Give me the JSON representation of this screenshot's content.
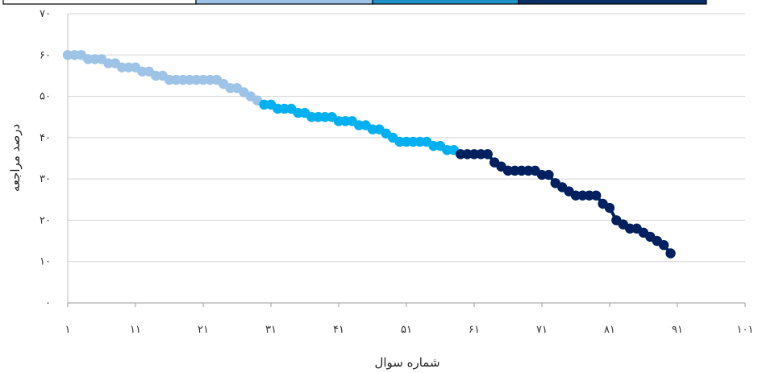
{
  "chart_data": {
    "type": "scatter",
    "title": "",
    "xlabel": "شماره سوال",
    "ylabel": "درصد مراجعه",
    "xlim": [
      1,
      101
    ],
    "ylim": [
      0,
      70
    ],
    "x_ticks": [
      1,
      11,
      21,
      31,
      41,
      51,
      61,
      71,
      81,
      91,
      101
    ],
    "x_tick_labels": [
      "۱",
      "۱۱",
      "۲۱",
      "۳۱",
      "۴۱",
      "۵۱",
      "۶۱",
      "۷۱",
      "۸۱",
      "۹۱",
      "۱۰۱"
    ],
    "y_ticks": [
      0,
      10,
      20,
      30,
      40,
      50,
      60,
      70
    ],
    "y_tick_labels": [
      "۰",
      "۱۰",
      "۲۰",
      "۳۰",
      "۴۰",
      "۵۰",
      "۶۰",
      "۷۰"
    ],
    "grid": true,
    "legend_colors": [
      "#ffffff",
      "#9dc3e6",
      "#1e8fc7",
      "#0a2f66"
    ],
    "series": [
      {
        "color": "#9dc3e6",
        "x": [
          1,
          2,
          3,
          4,
          5,
          6,
          7,
          8,
          9,
          10,
          11,
          12,
          13,
          14,
          15,
          16,
          17,
          18,
          19,
          20,
          21,
          22,
          23,
          24,
          25,
          26,
          27,
          28,
          29
        ],
        "y": [
          60,
          60,
          60,
          59,
          59,
          59,
          58,
          58,
          57,
          57,
          57,
          56,
          56,
          55,
          55,
          54,
          54,
          54,
          54,
          54,
          54,
          54,
          54,
          53,
          52,
          52,
          51,
          50,
          49
        ]
      },
      {
        "color": "#00b0f0",
        "x": [
          30,
          31,
          32,
          33,
          34,
          35,
          36,
          37,
          38,
          39,
          40,
          41,
          42,
          43,
          44,
          45,
          46,
          47,
          48,
          49,
          50,
          51,
          52,
          53,
          54,
          55,
          56,
          57,
          58
        ],
        "y": [
          48,
          48,
          47,
          47,
          47,
          46,
          46,
          45,
          45,
          45,
          45,
          44,
          44,
          44,
          43,
          43,
          42,
          42,
          41,
          40,
          39,
          39,
          39,
          39,
          39,
          38,
          38,
          37,
          37
        ]
      },
      {
        "color": "#002060",
        "x": [
          59,
          60,
          61,
          62,
          63,
          64,
          65,
          66,
          67,
          68,
          69,
          70,
          71,
          72,
          73,
          74,
          75,
          76,
          77,
          78,
          79,
          80,
          81,
          82,
          83,
          84,
          85,
          86,
          87,
          88,
          89,
          90
        ],
        "y": [
          36,
          36,
          36,
          36,
          36,
          34,
          33,
          32,
          32,
          32,
          32,
          32,
          31,
          31,
          29,
          28,
          27,
          26,
          26,
          26,
          26,
          24,
          23,
          20,
          19,
          18,
          18,
          17,
          16,
          15,
          14,
          12
        ]
      }
    ]
  }
}
